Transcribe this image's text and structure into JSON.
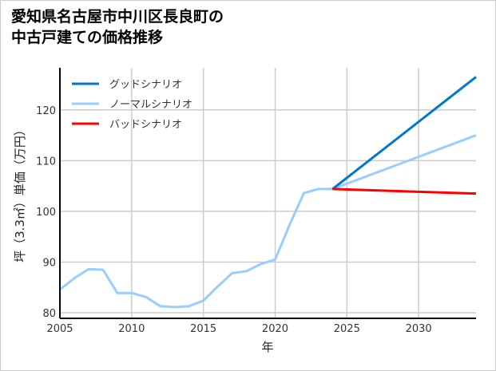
{
  "title_line1": "愛知県名古屋市中川区長良町の",
  "title_line2": "中古戸建ての価格推移",
  "chart_data": {
    "type": "line",
    "title": "愛知県名古屋市中川区長良町の中古戸建ての価格推移",
    "xlabel": "年",
    "ylabel": "坪（3.3㎡）単価（万円）",
    "xlim": [
      2005,
      2034
    ],
    "ylim": [
      78.9,
      128.3
    ],
    "xticks": [
      2005,
      2010,
      2015,
      2020,
      2025,
      2030
    ],
    "yticks": [
      80,
      90,
      100,
      110,
      120
    ],
    "grid": true,
    "legend_position": "top-left",
    "series": [
      {
        "name": "グッドシナリオ",
        "color": "#0077cc",
        "x": [
          2024,
          2034
        ],
        "values": [
          104.4,
          126.5
        ]
      },
      {
        "name": "ノーマルシナリオ",
        "color": "#99ccff",
        "x": [
          2005,
          2006,
          2007,
          2008,
          2009,
          2010,
          2011,
          2012,
          2013,
          2014,
          2015,
          2016,
          2017,
          2018,
          2019,
          2020,
          2021,
          2022,
          2023,
          2024,
          2034
        ],
        "values": [
          84.6,
          86.8,
          88.6,
          88.5,
          83.9,
          83.9,
          83.1,
          81.3,
          81.1,
          81.3,
          82.4,
          85.2,
          87.8,
          88.2,
          89.6,
          90.5,
          97.3,
          103.6,
          104.4,
          104.4,
          115.0
        ]
      },
      {
        "name": "バッドシナリオ",
        "color": "#ff0000",
        "x": [
          2024,
          2034
        ],
        "values": [
          104.4,
          103.5
        ]
      }
    ]
  }
}
